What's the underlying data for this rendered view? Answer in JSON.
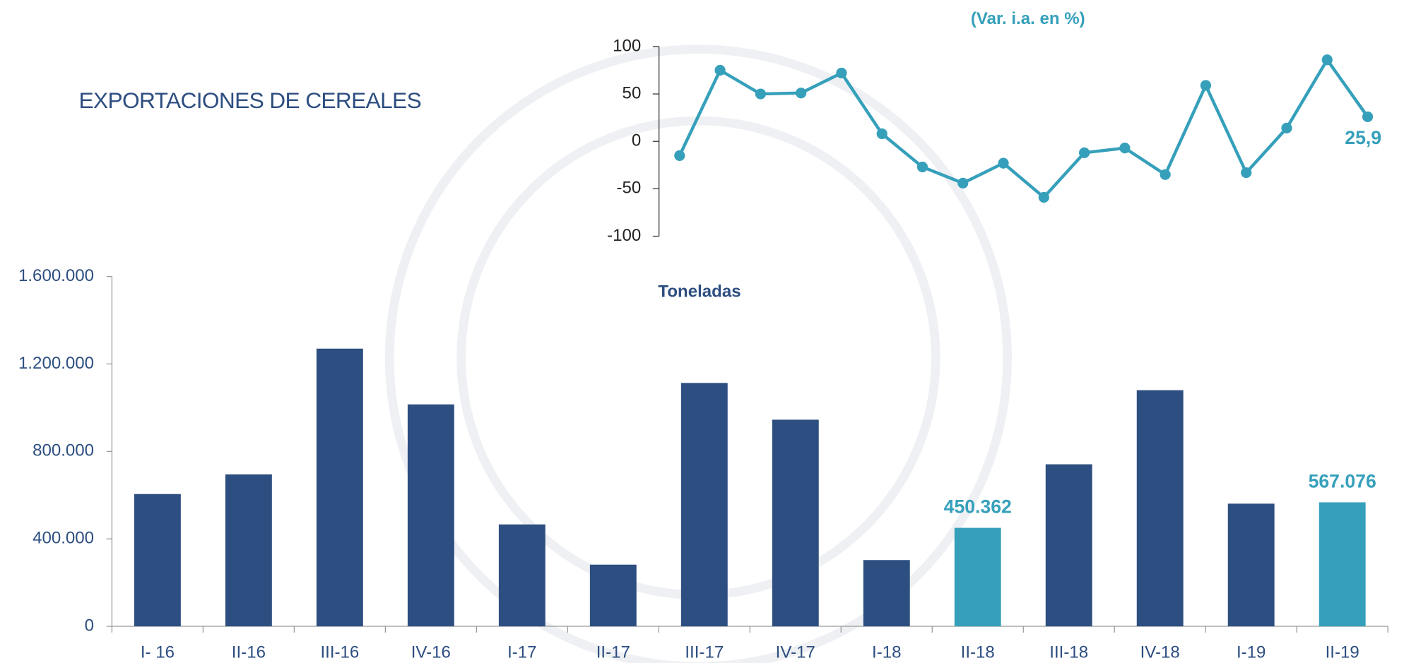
{
  "chart_data": [
    {
      "type": "bar",
      "title": "EXPORTACIONES DE CEREALES",
      "y_label": "Toneladas",
      "categories": [
        "I- 16",
        "II-16",
        "III-16",
        "IV-16",
        "I-17",
        "II-17",
        "III-17",
        "IV-17",
        "I-18",
        "II-18",
        "III-18",
        "IV-18",
        "I-19",
        "II-19"
      ],
      "values": [
        605000,
        695000,
        1270000,
        1015000,
        466000,
        282000,
        1113000,
        945000,
        303000,
        450362,
        741000,
        1080000,
        561000,
        567076
      ],
      "value_labels": [
        null,
        null,
        null,
        null,
        null,
        null,
        null,
        null,
        null,
        "450.362",
        null,
        null,
        null,
        "567.076"
      ],
      "colors": [
        "#2d4e80",
        "#2d4e80",
        "#2d4e80",
        "#2d4e80",
        "#2d4e80",
        "#2d4e80",
        "#2d4e80",
        "#2d4e80",
        "#2d4e80",
        "#36a0bb",
        "#2d4e80",
        "#2d4e80",
        "#2d4e80",
        "#36a0bb"
      ],
      "ylim": [
        0,
        1600000
      ],
      "yticks": [
        0,
        {
          "value": 400000,
          "label": "400.000"
        },
        {
          "value": 800000,
          "label": "800.000"
        },
        {
          "value": 1200000,
          "label": "1.200.000"
        },
        {
          "value": 1600000,
          "label": "1.600.000"
        }
      ],
      "grid": false
    },
    {
      "type": "line",
      "title": "(Var. i.a. en %)",
      "categories": [
        null,
        null,
        null,
        null,
        null,
        null,
        null,
        null,
        null,
        null,
        null,
        null,
        null,
        null,
        null,
        null,
        null,
        null
      ],
      "values": [
        -15,
        75,
        50,
        51,
        72,
        8,
        -27,
        -44,
        -23,
        -59,
        -12,
        -7,
        -35,
        59,
        -33,
        14,
        86,
        25.9
      ],
      "value_labels": [
        null,
        null,
        null,
        null,
        null,
        null,
        null,
        null,
        null,
        null,
        null,
        null,
        null,
        null,
        null,
        null,
        null,
        "25,9"
      ],
      "color": "#36a0bb",
      "ylim": [
        -100,
        100
      ],
      "yticks": [
        -100,
        -50,
        0,
        50,
        100
      ],
      "grid": false
    }
  ]
}
